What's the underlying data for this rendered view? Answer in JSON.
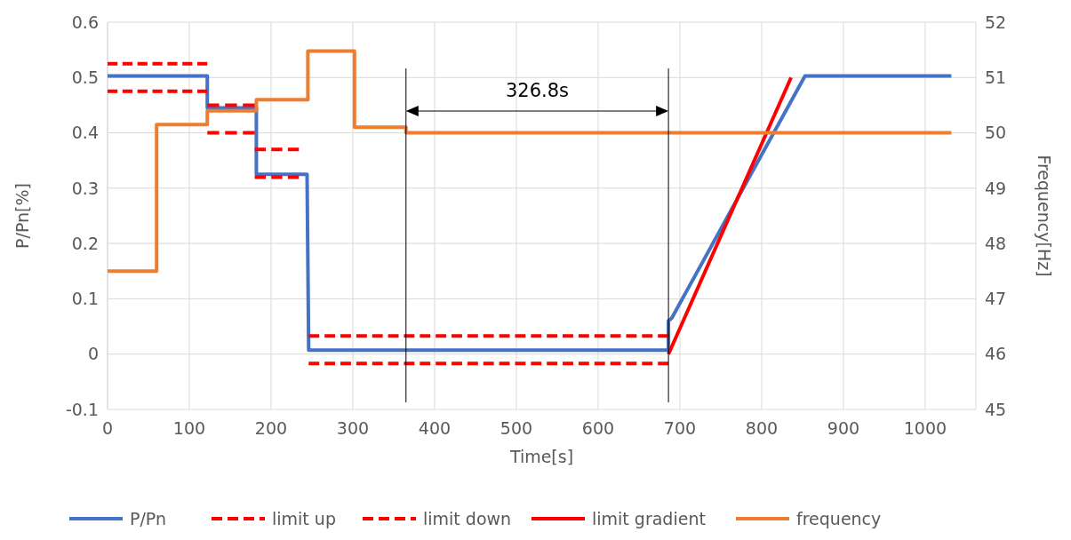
{
  "chart_data": {
    "type": "line",
    "xlabel": "Time[s]",
    "ylabel": "P/Pn[%]",
    "y2label": "Frequency[Hz]",
    "xlim": [
      0,
      1062
    ],
    "xticks": [
      0,
      100,
      200,
      300,
      400,
      500,
      600,
      700,
      800,
      900,
      1000
    ],
    "ylim": [
      -0.1,
      0.6
    ],
    "yticks": [
      -0.1,
      0,
      0.1,
      0.2,
      0.3,
      0.4,
      0.5,
      0.6
    ],
    "y2lim": [
      45,
      52
    ],
    "y2ticks": [
      45,
      46,
      47,
      48,
      49,
      50,
      51,
      52
    ],
    "grid": true,
    "legend": "bottom",
    "line_style": "solid",
    "marker": "none",
    "series": [
      {
        "name": "P/Pn",
        "color": "#4472c4",
        "x": [
          0,
          122,
          122,
          182,
          182,
          244,
          246,
          686,
          686,
          690,
          853,
          1032
        ],
        "values": [
          0.503,
          0.503,
          0.445,
          0.445,
          0.325,
          0.325,
          0.007,
          0.007,
          0.06,
          0.065,
          0.503,
          0.503
        ]
      },
      {
        "name": "limit up",
        "color": "#ff0000",
        "line_style": "dashed",
        "x": [
          0,
          122
        ],
        "values": [
          0.525,
          0.525
        ]
      },
      {
        "name": "limit down",
        "color": "#ff0000",
        "line_style": "dashed",
        "x": [
          0,
          122
        ],
        "values": [
          0.475,
          0.475
        ]
      },
      {
        "name": "limit gradient",
        "color": "#ff0000",
        "x": [
          686,
          836
        ],
        "values": [
          0,
          0.5
        ]
      },
      {
        "name": "frequency",
        "color": "#ed7d31",
        "axis": "y2",
        "x": [
          0,
          60,
          60,
          122,
          122,
          182,
          182,
          245,
          245,
          302,
          302,
          365,
          365,
          1032
        ],
        "values": [
          47.5,
          47.5,
          50.15,
          50.15,
          50.4,
          50.4,
          50.6,
          50.6,
          51.48,
          51.48,
          50.1,
          50.1,
          50.0,
          50.0
        ]
      },
      {
        "color": "#ff0000",
        "line_style": "dashed",
        "x": [
          122,
          180
        ],
        "values": [
          0.45,
          0.45
        ]
      },
      {
        "color": "#ff0000",
        "line_style": "dashed",
        "x": [
          180,
          234
        ],
        "values": [
          0.37,
          0.37
        ]
      },
      {
        "color": "#ff0000",
        "line_style": "dashed",
        "x": [
          246,
          686
        ],
        "values": [
          0.033,
          0.033
        ]
      },
      {
        "color": "#ff0000",
        "line_style": "dashed",
        "x": [
          122,
          180
        ],
        "values": [
          0.4,
          0.4
        ]
      },
      {
        "color": "#ff0000",
        "line_style": "dashed",
        "x": [
          180,
          234
        ],
        "values": [
          0.32,
          0.32
        ]
      },
      {
        "color": "#ff0000",
        "line_style": "dashed",
        "x": [
          246,
          686
        ],
        "values": [
          -0.017,
          -0.017
        ]
      }
    ],
    "ref_lines": [
      {
        "axis": "x",
        "value": 365,
        "color": "#000000"
      },
      {
        "axis": "x",
        "value": 686,
        "color": "#000000"
      }
    ],
    "annotations": [
      "326.8s"
    ]
  }
}
